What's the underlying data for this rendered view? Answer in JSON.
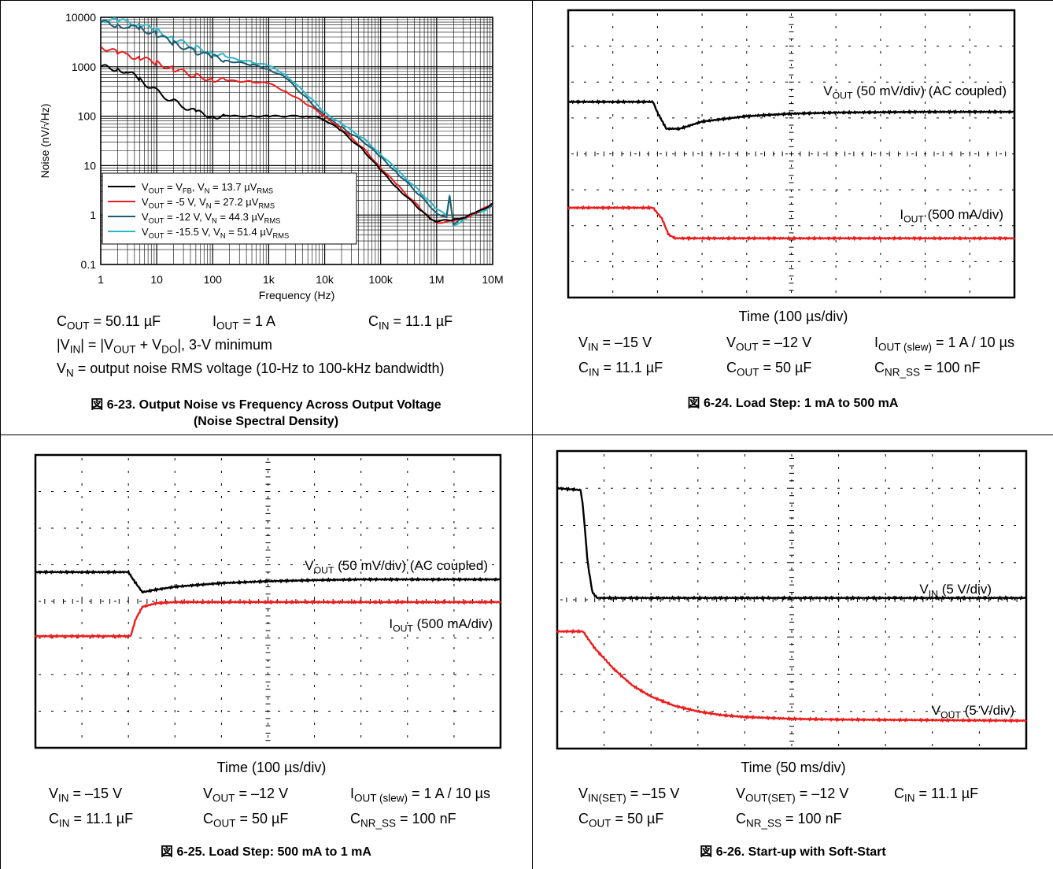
{
  "charts": [
    {
      "type": "line",
      "xscale": "log",
      "yscale": "log",
      "xlim": [
        1,
        10000000
      ],
      "ylim": [
        0.1,
        10000
      ],
      "xlabel": "Frequency (Hz)",
      "ylabel": "Noise (nV/√Hz)",
      "xticks": [
        "1",
        "10",
        "100",
        "1k",
        "10k",
        "100k",
        "1M",
        "10M"
      ],
      "yticks": [
        "0.1",
        "1",
        "10",
        "100",
        "1000",
        "10000"
      ],
      "legend_position": "lower-left",
      "series": [
        {
          "name": "V_OUT = V_FB, V_N = 13.7 µV_RMS",
          "legend": {
            "a": "V",
            "as": "OUT",
            "b": " = V",
            "bs": "FB",
            "c": ", V",
            "cs": "N",
            "d": " = 13.7 µV",
            "ds": "RMS"
          },
          "color": "#000000",
          "x": [
            1,
            2,
            3,
            5,
            7,
            10,
            15,
            20,
            30,
            50,
            100,
            200,
            500,
            1000,
            3000,
            5000,
            7000,
            10000,
            20000,
            50000,
            100000,
            200000,
            500000,
            800000,
            1000000,
            2000000,
            3000000,
            5000000,
            10000000
          ],
          "y": [
            1000,
            900,
            800,
            550,
            420,
            320,
            240,
            200,
            160,
            120,
            100,
            100,
            100,
            100,
            100,
            100,
            95,
            85,
            50,
            20,
            8,
            3.5,
            1.3,
            0.8,
            0.75,
            0.8,
            0.9,
            1.1,
            1.7
          ]
        },
        {
          "name": "V_OUT = -5 V, V_N = 27.2 µV_RMS",
          "legend": {
            "a": "V",
            "as": "OUT",
            "b": " = -5 V, V",
            "bs": "N",
            "c": " = 27.2 µV",
            "cs": "RMS",
            "d": "",
            "ds": ""
          },
          "color": "#ee1c1c",
          "x": [
            1,
            2,
            3,
            5,
            10,
            20,
            50,
            100,
            200,
            500,
            1000,
            2000,
            5000,
            10000,
            20000,
            50000,
            100000,
            200000,
            500000,
            800000,
            1000000,
            2000000,
            3000000,
            5000000,
            10000000
          ],
          "y": [
            2600,
            1900,
            1700,
            1500,
            1200,
            900,
            650,
            560,
            520,
            500,
            460,
            320,
            170,
            100,
            55,
            22,
            9,
            4,
            1.4,
            0.8,
            0.7,
            0.75,
            0.85,
            1.1,
            1.7
          ]
        },
        {
          "name": "V_OUT = -12 V, V_N = 44.3 µV_RMS",
          "legend": {
            "a": "V",
            "as": "OUT",
            "b": " = -12 V, V",
            "bs": "N",
            "c": " = 44.3 µV",
            "cs": "RMS",
            "d": "",
            "ds": ""
          },
          "color": "#1f5c6e",
          "x": [
            1,
            2,
            3,
            5,
            10,
            20,
            50,
            100,
            200,
            500,
            1000,
            2000,
            5000,
            10000,
            20000,
            50000,
            100000,
            200000,
            500000,
            1000000,
            1500000,
            1700000,
            2000000,
            3000000,
            5000000,
            10000000
          ],
          "y": [
            8000,
            7000,
            6500,
            6000,
            4500,
            3000,
            2000,
            1600,
            1300,
            1100,
            900,
            600,
            220,
            100,
            60,
            30,
            15,
            7,
            2.5,
            1.1,
            0.9,
            2.4,
            0.65,
            0.85,
            1.1,
            1.6
          ]
        },
        {
          "name": "V_OUT = -15.5 V, V_N = 51.4 µV_RMS",
          "legend": {
            "a": "V",
            "as": "OUT",
            "b": " = -15.5 V, V",
            "bs": "N",
            "c": " = 51.4 µV",
            "cs": "RMS",
            "d": "",
            "ds": ""
          },
          "color": "#2bb6c8",
          "x": [
            1,
            2,
            3,
            5,
            10,
            20,
            50,
            100,
            200,
            500,
            1000,
            2000,
            5000,
            10000,
            20000,
            50000,
            100000,
            200000,
            500000,
            1000000,
            1500000,
            1700000,
            2000000,
            3000000,
            5000000,
            10000000
          ],
          "y": [
            9000,
            8500,
            8000,
            7000,
            5500,
            3600,
            2400,
            1900,
            1500,
            1250,
            1050,
            700,
            260,
            120,
            70,
            35,
            17,
            8,
            3,
            1.3,
            1.0,
            2.6,
            0.6,
            0.8,
            1.05,
            1.5
          ]
        }
      ]
    },
    {
      "type": "line",
      "xlabel": "Time (100 µs/div)",
      "grid_divisions": [
        10,
        8
      ],
      "traces": [
        {
          "name": "V_OUT (50 mV/div) (AC coupled)",
          "label": {
            "a": "V",
            "as": "OUT",
            "b": " (50 mV/div) (AC coupled)"
          },
          "color": "#000000",
          "t": [
            0,
            1.9,
            2.0,
            2.2,
            2.5,
            3.0,
            4.0,
            5.0,
            6.0,
            7.0,
            8.0,
            10.0
          ],
          "y": [
            2.55,
            2.55,
            2.85,
            3.3,
            3.3,
            3.1,
            2.95,
            2.88,
            2.85,
            2.84,
            2.83,
            2.83
          ]
        },
        {
          "name": "I_OUT (500 mA/div)",
          "label": {
            "a": "I",
            "as": "OUT",
            "b": " (500 mA/div)"
          },
          "color": "#ee1c1c",
          "t": [
            0,
            1.9,
            2.1,
            2.25,
            2.4,
            10.0
          ],
          "y": [
            5.5,
            5.5,
            5.8,
            6.25,
            6.35,
            6.35
          ]
        }
      ],
      "conditions": [
        [
          {
            "a": "V",
            "as": "IN",
            "b": " = –15 V"
          },
          {
            "a": "V",
            "as": "OUT",
            "b": " = –12 V"
          },
          {
            "a": "I",
            "as": "OUT (slew)",
            "b": " = 1 A / 10 µs"
          }
        ],
        [
          {
            "a": "C",
            "as": "IN",
            "b": " = 11.1 µF"
          },
          {
            "a": "C",
            "as": "OUT",
            "b": " = 50 µF"
          },
          {
            "a": "C",
            "as": "NR_SS",
            "b": " = 100 nF"
          }
        ]
      ],
      "caption": "図 6-24. Load Step: 1 mA to 500 mA"
    },
    {
      "type": "line",
      "xlabel": "Time (100 µs/div)",
      "grid_divisions": [
        10,
        8
      ],
      "traces": [
        {
          "name": "V_OUT (50 mV/div) (AC coupled)",
          "label": {
            "a": "V",
            "as": "OUT",
            "b": " (50 mV/div) (AC coupled)"
          },
          "color": "#000000",
          "t": [
            0,
            2.0,
            2.1,
            2.3,
            2.5,
            3.0,
            4.0,
            5.0,
            6.0,
            7.0,
            10.0
          ],
          "y": [
            3.2,
            3.2,
            3.4,
            3.75,
            3.7,
            3.6,
            3.5,
            3.45,
            3.42,
            3.4,
            3.4
          ]
        },
        {
          "name": "I_OUT (500 mA/div)",
          "label": {
            "a": "I",
            "as": "OUT",
            "b": " (500 mA/div)"
          },
          "color": "#ee1c1c",
          "t": [
            0,
            2.05,
            2.15,
            2.3,
            2.6,
            3.0,
            10.0
          ],
          "y": [
            4.95,
            4.95,
            4.5,
            4.15,
            4.05,
            4.02,
            4.02
          ]
        }
      ],
      "conditions": [
        [
          {
            "a": "V",
            "as": "IN",
            "b": " = –15 V"
          },
          {
            "a": "V",
            "as": "OUT",
            "b": " = –12 V"
          },
          {
            "a": "I",
            "as": "OUT (slew)",
            "b": " = 1 A / 10 µs"
          }
        ],
        [
          {
            "a": "C",
            "as": "IN",
            "b": " = 11.1 µF"
          },
          {
            "a": "C",
            "as": "OUT",
            "b": " = 50 µF"
          },
          {
            "a": "C",
            "as": "NR_SS",
            "b": " = 100 nF"
          }
        ]
      ],
      "caption": "図 6-25. Load Step: 500 mA to 1 mA"
    },
    {
      "type": "line",
      "xlabel": "Time (50 ms/div)",
      "grid_divisions": [
        10,
        8
      ],
      "traces": [
        {
          "name": "V_IN (5 V/div)",
          "label": {
            "a": "V",
            "as": "IN",
            "b": " (5 V/div)"
          },
          "color": "#000000",
          "t": [
            0,
            0.5,
            0.55,
            0.65,
            0.75,
            0.85,
            10.0
          ],
          "y": [
            1.0,
            1.05,
            1.5,
            3.0,
            3.8,
            3.95,
            3.95
          ]
        },
        {
          "name": "V_OUT (5 V/div)",
          "label": {
            "a": "V",
            "as": "OUT",
            "b": " (5 V/div)"
          },
          "color": "#ee1c1c",
          "t": [
            0,
            0.55,
            0.8,
            1.2,
            1.6,
            2.0,
            2.5,
            3.0,
            3.5,
            4.0,
            5.0,
            6.0,
            10.0
          ],
          "y": [
            4.85,
            4.85,
            5.3,
            5.85,
            6.3,
            6.6,
            6.85,
            7.0,
            7.1,
            7.15,
            7.2,
            7.22,
            7.25
          ]
        }
      ],
      "conditions": [
        [
          {
            "a": "V",
            "as": "IN(SET)",
            "b": " = –15 V"
          },
          {
            "a": "V",
            "as": "OUT(SET)",
            "b": " = –12 V"
          },
          {
            "a": "C",
            "as": "IN",
            "b": " = 11.1 µF"
          }
        ],
        [
          {
            "a": "C",
            "as": "OUT",
            "b": " = 50 µF"
          },
          {
            "a": "C",
            "as": "NR_SS",
            "b": " = 100 nF"
          }
        ]
      ],
      "caption": "図 6-26. Start-up with Soft-Start"
    }
  ],
  "noise_conditions": [
    [
      {
        "a": "C",
        "as": "OUT",
        "b": " = 50.11 µF"
      },
      {
        "a": "I",
        "as": "OUT",
        "b": " = 1 A"
      },
      {
        "a": "C",
        "as": "IN",
        "b": " = 11.1 µF"
      }
    ],
    [
      {
        "a": "|V",
        "as": "IN",
        "b": "| = |V"
      },
      {
        "a": "",
        "as": "OUT",
        "b": " + V"
      },
      {
        "a": "",
        "as": "DO",
        "b": "|, 3-V minimum"
      }
    ],
    [
      {
        "a": "V",
        "as": "N",
        "b": " = output noise RMS voltage (10-Hz to 100-kHz bandwidth)"
      }
    ]
  ],
  "noise_caption_line1": "図 6-23. Output Noise vs Frequency Across Output Voltage",
  "noise_caption_line2": "(Noise Spectral Density)"
}
